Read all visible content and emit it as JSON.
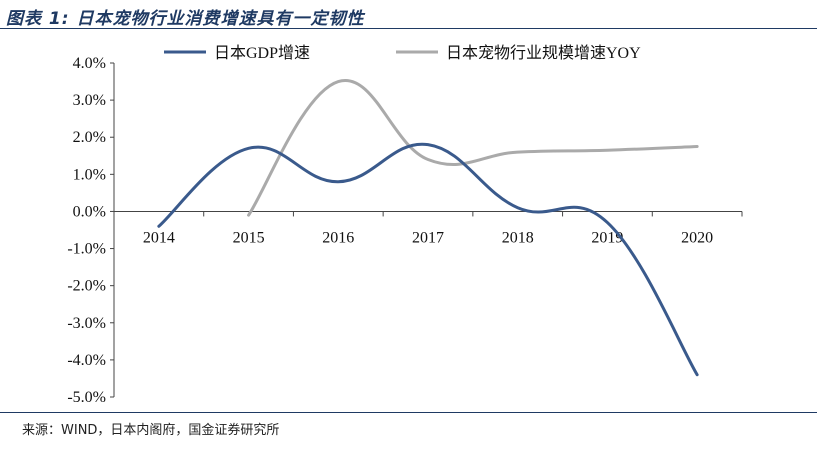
{
  "figure": {
    "title": "图表 1:  日本宠物行业消费增速具有一定韧性",
    "source": "来源：WIND，日本内阁府，国金证券研究所"
  },
  "chart_data": {
    "type": "line",
    "title": "",
    "xlabel": "",
    "ylabel": "",
    "categories": [
      "2014",
      "2015",
      "2016",
      "2017",
      "2018",
      "2019",
      "2020"
    ],
    "ylim": [
      -5.0,
      4.0
    ],
    "yticks": [
      "4.0%",
      "3.0%",
      "2.0%",
      "1.0%",
      "0.0%",
      "-1.0%",
      "-2.0%",
      "-3.0%",
      "-4.0%",
      "-5.0%"
    ],
    "grid": false,
    "legend_position": "top",
    "smooth": true,
    "series": [
      {
        "name": "日本GDP增速",
        "color": "#3a5a8c",
        "values": [
          -0.4,
          1.7,
          0.8,
          1.8,
          0.1,
          -0.3,
          -4.4
        ]
      },
      {
        "name": "日本宠物行业规模增速YOY",
        "color": "#aaaaaa",
        "values": [
          null,
          -0.1,
          3.5,
          1.4,
          1.6,
          1.65,
          1.75
        ]
      }
    ]
  }
}
